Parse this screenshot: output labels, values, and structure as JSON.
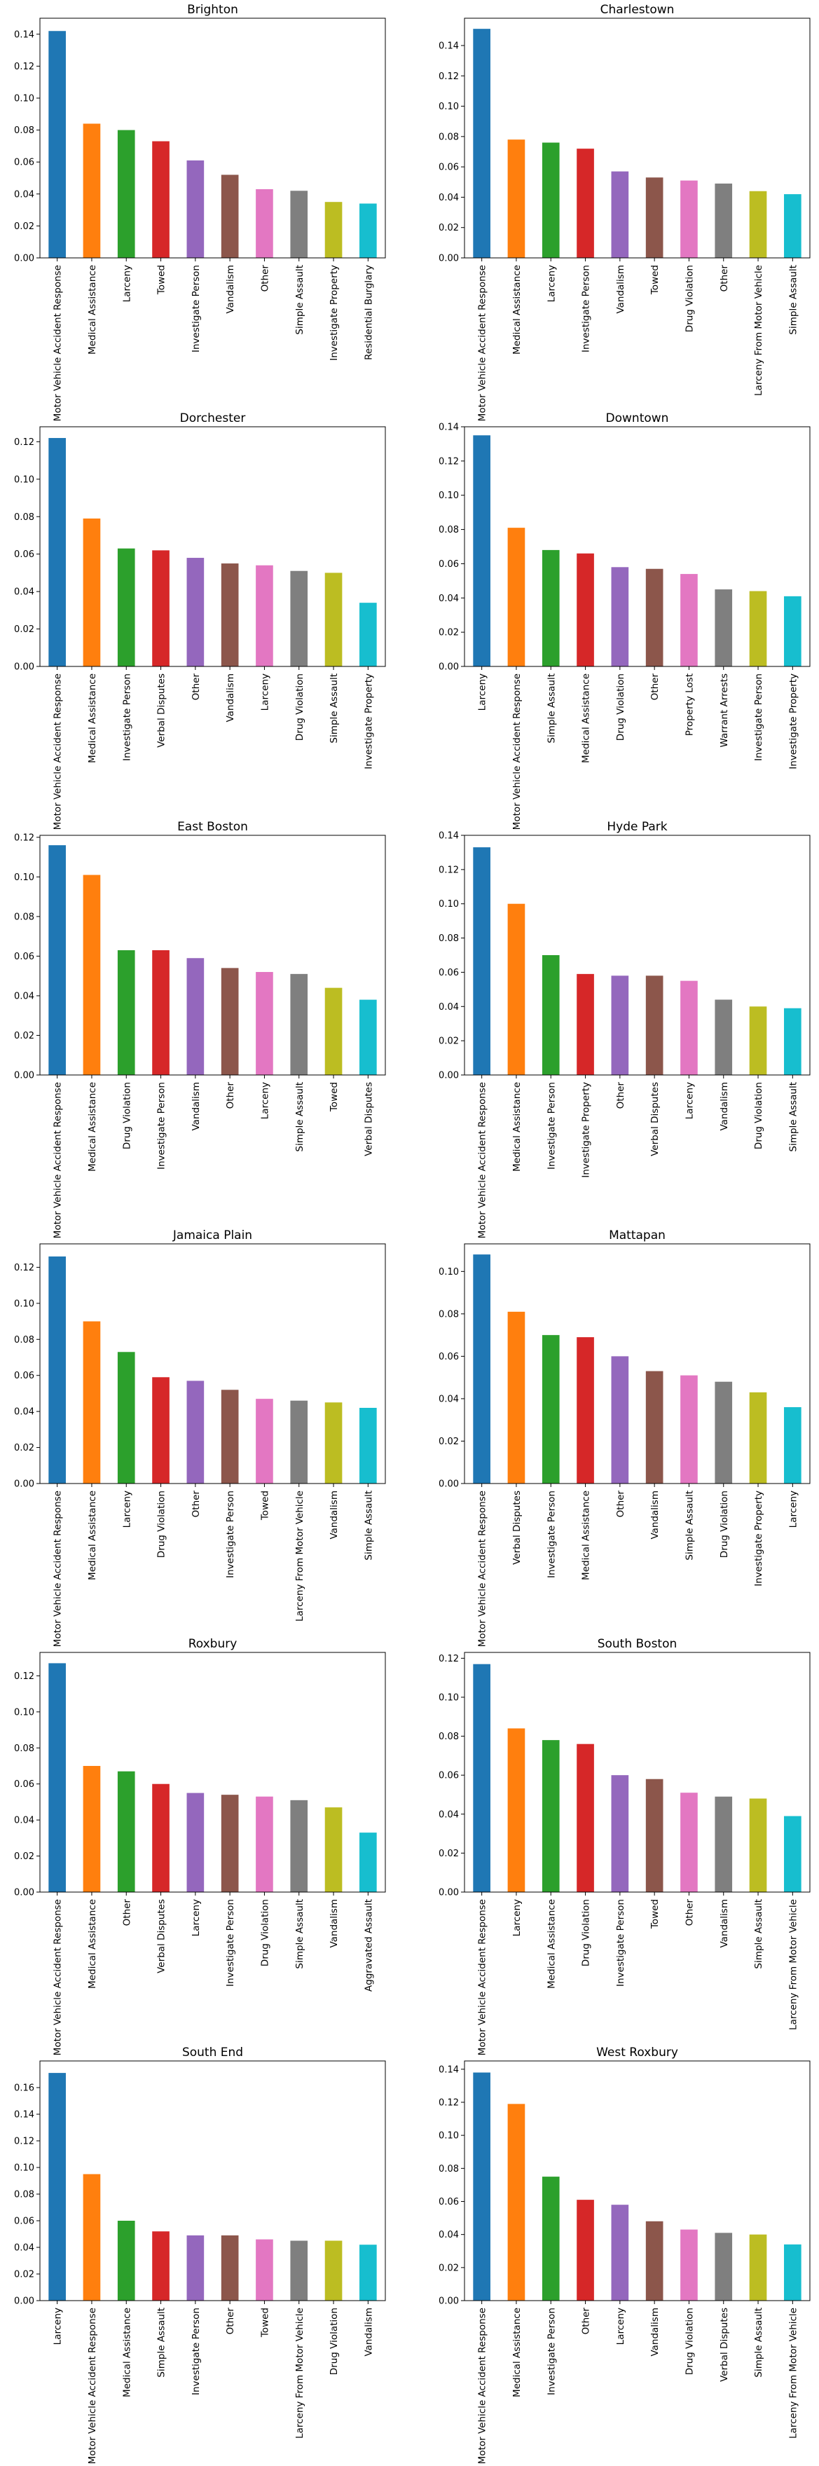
{
  "colors": [
    "#1f77b4",
    "#ff7f0e",
    "#2ca02c",
    "#d62728",
    "#9467bd",
    "#8c564b",
    "#e377c2",
    "#7f7f7f",
    "#bcbd22",
    "#17becf"
  ],
  "chart_data": [
    {
      "type": "bar",
      "title": "Brighton",
      "ylim": [
        0,
        0.15
      ],
      "yticks": [
        0.0,
        0.02,
        0.04,
        0.06,
        0.08,
        0.1,
        0.12,
        0.14
      ],
      "ytick_labels": [
        "0.00",
        "0.02",
        "0.04",
        "0.06",
        "0.08",
        "0.10",
        "0.12",
        "0.14"
      ],
      "categories": [
        "Motor Vehicle Accident Response",
        "Medical Assistance",
        "Larceny",
        "Towed",
        "Investigate Person",
        "Vandalism",
        "Other",
        "Simple Assault",
        "Investigate Property",
        "Residential Burglary"
      ],
      "values": [
        0.142,
        0.084,
        0.08,
        0.073,
        0.061,
        0.052,
        0.043,
        0.042,
        0.035,
        0.034
      ]
    },
    {
      "type": "bar",
      "title": "Charlestown",
      "ylim": [
        0,
        0.158
      ],
      "yticks": [
        0.0,
        0.02,
        0.04,
        0.06,
        0.08,
        0.1,
        0.12,
        0.14
      ],
      "ytick_labels": [
        "0.00",
        "0.02",
        "0.04",
        "0.06",
        "0.08",
        "0.10",
        "0.12",
        "0.14"
      ],
      "categories": [
        "Motor Vehicle Accident Response",
        "Medical Assistance",
        "Larceny",
        "Investigate Person",
        "Vandalism",
        "Towed",
        "Drug Violation",
        "Other",
        "Larceny From Motor Vehicle",
        "Simple Assault"
      ],
      "values": [
        0.151,
        0.078,
        0.076,
        0.072,
        0.057,
        0.053,
        0.051,
        0.049,
        0.044,
        0.042
      ]
    },
    {
      "type": "bar",
      "title": "Dorchester",
      "ylim": [
        0,
        0.128
      ],
      "yticks": [
        0.0,
        0.02,
        0.04,
        0.06,
        0.08,
        0.1,
        0.12
      ],
      "ytick_labels": [
        "0.00",
        "0.02",
        "0.04",
        "0.06",
        "0.08",
        "0.10",
        "0.12"
      ],
      "categories": [
        "Motor Vehicle Accident Response",
        "Medical Assistance",
        "Investigate Person",
        "Verbal Disputes",
        "Other",
        "Vandalism",
        "Larceny",
        "Drug Violation",
        "Simple Assault",
        "Investigate Property"
      ],
      "values": [
        0.122,
        0.079,
        0.063,
        0.062,
        0.058,
        0.055,
        0.054,
        0.051,
        0.05,
        0.034
      ]
    },
    {
      "type": "bar",
      "title": "Downtown",
      "ylim": [
        0,
        0.14
      ],
      "yticks": [
        0.0,
        0.02,
        0.04,
        0.06,
        0.08,
        0.1,
        0.12,
        0.14
      ],
      "ytick_labels": [
        "0.00",
        "0.02",
        "0.04",
        "0.06",
        "0.08",
        "0.10",
        "0.12",
        "0.14"
      ],
      "categories": [
        "Larceny",
        "Motor Vehicle Accident Response",
        "Simple Assault",
        "Medical Assistance",
        "Drug Violation",
        "Other",
        "Property Lost",
        "Warrant Arrests",
        "Investigate Person",
        "Investigate Property"
      ],
      "values": [
        0.135,
        0.081,
        0.068,
        0.066,
        0.058,
        0.057,
        0.054,
        0.045,
        0.044,
        0.041
      ]
    },
    {
      "type": "bar",
      "title": "East Boston",
      "ylim": [
        0,
        0.121
      ],
      "yticks": [
        0.0,
        0.02,
        0.04,
        0.06,
        0.08,
        0.1,
        0.12
      ],
      "ytick_labels": [
        "0.00",
        "0.02",
        "0.04",
        "0.06",
        "0.08",
        "0.10",
        "0.12"
      ],
      "categories": [
        "Motor Vehicle Accident Response",
        "Medical Assistance",
        "Drug Violation",
        "Investigate Person",
        "Vandalism",
        "Other",
        "Larceny",
        "Simple Assault",
        "Towed",
        "Verbal Disputes"
      ],
      "values": [
        0.116,
        0.101,
        0.063,
        0.063,
        0.059,
        0.054,
        0.052,
        0.051,
        0.044,
        0.038
      ]
    },
    {
      "type": "bar",
      "title": "Hyde Park",
      "ylim": [
        0,
        0.14
      ],
      "yticks": [
        0.0,
        0.02,
        0.04,
        0.06,
        0.08,
        0.1,
        0.12,
        0.14
      ],
      "ytick_labels": [
        "0.00",
        "0.02",
        "0.04",
        "0.06",
        "0.08",
        "0.10",
        "0.12",
        "0.14"
      ],
      "categories": [
        "Motor Vehicle Accident Response",
        "Medical Assistance",
        "Investigate Person",
        "Investigate Property",
        "Other",
        "Verbal Disputes",
        "Larceny",
        "Vandalism",
        "Drug Violation",
        "Simple Assault"
      ],
      "values": [
        0.133,
        0.1,
        0.07,
        0.059,
        0.058,
        0.058,
        0.055,
        0.044,
        0.04,
        0.039
      ]
    },
    {
      "type": "bar",
      "title": "Jamaica Plain",
      "ylim": [
        0,
        0.133
      ],
      "yticks": [
        0.0,
        0.02,
        0.04,
        0.06,
        0.08,
        0.1,
        0.12
      ],
      "ytick_labels": [
        "0.00",
        "0.02",
        "0.04",
        "0.06",
        "0.08",
        "0.10",
        "0.12"
      ],
      "categories": [
        "Motor Vehicle Accident Response",
        "Medical Assistance",
        "Larceny",
        "Drug Violation",
        "Other",
        "Investigate Person",
        "Towed",
        "Larceny From Motor Vehicle",
        "Vandalism",
        "Simple Assault"
      ],
      "values": [
        0.126,
        0.09,
        0.073,
        0.059,
        0.057,
        0.052,
        0.047,
        0.046,
        0.045,
        0.042
      ]
    },
    {
      "type": "bar",
      "title": "Mattapan",
      "ylim": [
        0,
        0.113
      ],
      "yticks": [
        0.0,
        0.02,
        0.04,
        0.06,
        0.08,
        0.1
      ],
      "ytick_labels": [
        "0.00",
        "0.02",
        "0.04",
        "0.06",
        "0.08",
        "0.10"
      ],
      "categories": [
        "Motor Vehicle Accident Response",
        "Verbal Disputes",
        "Investigate Person",
        "Medical Assistance",
        "Other",
        "Vandalism",
        "Simple Assault",
        "Drug Violation",
        "Investigate Property",
        "Larceny"
      ],
      "values": [
        0.108,
        0.081,
        0.07,
        0.069,
        0.06,
        0.053,
        0.051,
        0.048,
        0.043,
        0.036
      ]
    },
    {
      "type": "bar",
      "title": "Roxbury",
      "ylim": [
        0,
        0.133
      ],
      "yticks": [
        0.0,
        0.02,
        0.04,
        0.06,
        0.08,
        0.1,
        0.12
      ],
      "ytick_labels": [
        "0.00",
        "0.02",
        "0.04",
        "0.06",
        "0.08",
        "0.10",
        "0.12"
      ],
      "categories": [
        "Motor Vehicle Accident Response",
        "Medical Assistance",
        "Other",
        "Verbal Disputes",
        "Larceny",
        "Investigate Person",
        "Drug Violation",
        "Simple Assault",
        "Vandalism",
        "Aggravated Assault"
      ],
      "values": [
        0.127,
        0.07,
        0.067,
        0.06,
        0.055,
        0.054,
        0.053,
        0.051,
        0.047,
        0.033
      ]
    },
    {
      "type": "bar",
      "title": "South Boston",
      "ylim": [
        0,
        0.123
      ],
      "yticks": [
        0.0,
        0.02,
        0.04,
        0.06,
        0.08,
        0.1,
        0.12
      ],
      "ytick_labels": [
        "0.00",
        "0.02",
        "0.04",
        "0.06",
        "0.08",
        "0.10",
        "0.12"
      ],
      "categories": [
        "Motor Vehicle Accident Response",
        "Larceny",
        "Medical Assistance",
        "Drug Violation",
        "Investigate Person",
        "Towed",
        "Other",
        "Vandalism",
        "Simple Assault",
        "Larceny From Motor Vehicle"
      ],
      "values": [
        0.117,
        0.084,
        0.078,
        0.076,
        0.06,
        0.058,
        0.051,
        0.049,
        0.048,
        0.039
      ]
    },
    {
      "type": "bar",
      "title": "South End",
      "ylim": [
        0,
        0.18
      ],
      "yticks": [
        0.0,
        0.02,
        0.04,
        0.06,
        0.08,
        0.1,
        0.12,
        0.14,
        0.16
      ],
      "ytick_labels": [
        "0.00",
        "0.02",
        "0.04",
        "0.06",
        "0.08",
        "0.10",
        "0.12",
        "0.14",
        "0.16"
      ],
      "categories": [
        "Larceny",
        "Motor Vehicle Accident Response",
        "Medical Assistance",
        "Simple Assault",
        "Investigate Person",
        "Other",
        "Towed",
        "Larceny From Motor Vehicle",
        "Drug Violation",
        "Vandalism"
      ],
      "values": [
        0.171,
        0.095,
        0.06,
        0.052,
        0.049,
        0.049,
        0.046,
        0.045,
        0.045,
        0.042
      ]
    },
    {
      "type": "bar",
      "title": "West Roxbury",
      "ylim": [
        0,
        0.145
      ],
      "yticks": [
        0.0,
        0.02,
        0.04,
        0.06,
        0.08,
        0.1,
        0.12,
        0.14
      ],
      "ytick_labels": [
        "0.00",
        "0.02",
        "0.04",
        "0.06",
        "0.08",
        "0.10",
        "0.12",
        "0.14"
      ],
      "categories": [
        "Motor Vehicle Accident Response",
        "Medical Assistance",
        "Investigate Person",
        "Other",
        "Larceny",
        "Vandalism",
        "Drug Violation",
        "Verbal Disputes",
        "Simple Assault",
        "Larceny From Motor Vehicle"
      ],
      "values": [
        0.138,
        0.119,
        0.075,
        0.061,
        0.058,
        0.048,
        0.043,
        0.041,
        0.04,
        0.034
      ]
    }
  ]
}
